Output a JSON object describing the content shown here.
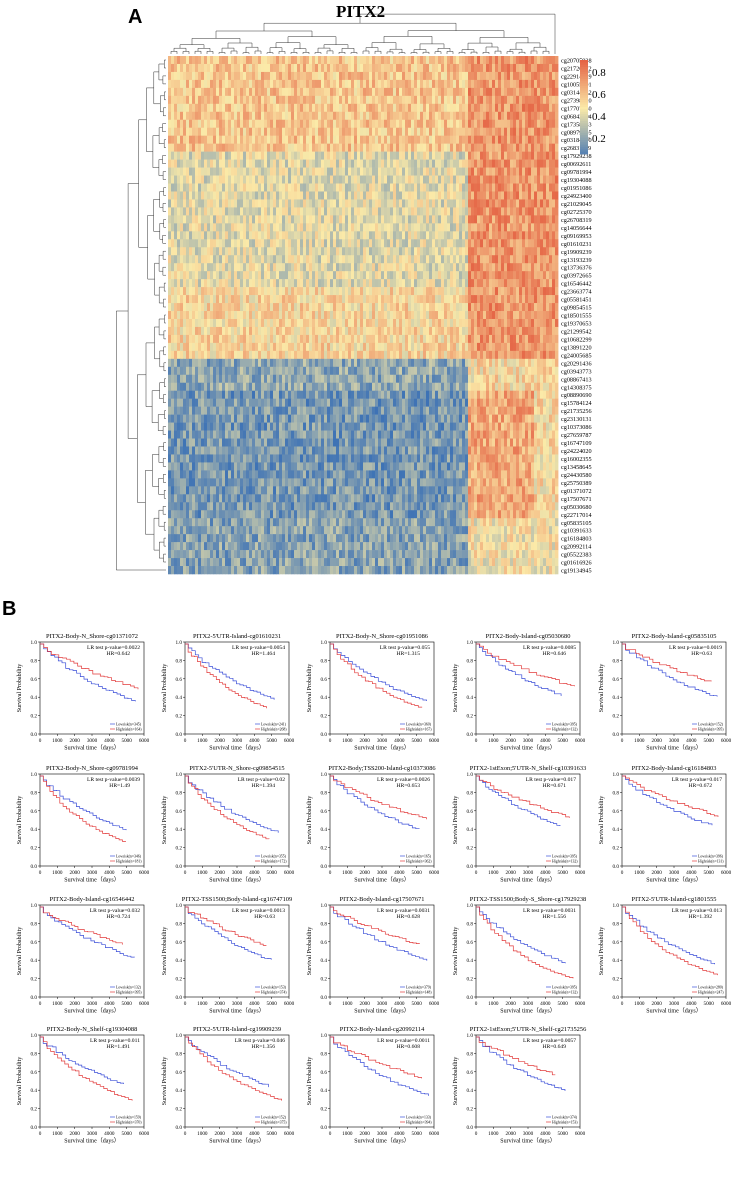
{
  "figure": {
    "panel_a_label": "A",
    "panel_b_label": "B"
  },
  "heatmap": {
    "title": "PITX2",
    "colorbar_ticks": [
      "0.8",
      "0.6",
      "0.4",
      "0.2"
    ],
    "colorbar_colors": [
      "#e2553a",
      "#fbeaa8",
      "#3d72b5"
    ],
    "row_labels": [
      "cg20705938",
      "cg21726372",
      "cg22914729",
      "cg10055501",
      "cg03144922",
      "cg27398720",
      "cg17707140",
      "cg06842954",
      "cg17358883",
      "cg08979895",
      "cg03184290",
      "cg26831119",
      "cg17929238",
      "cg00692611",
      "cg09781994",
      "cg19304088",
      "cg01951086",
      "cg24923400",
      "cg21029045",
      "cg02725370",
      "cg26708319",
      "cg14056644",
      "cg09169953",
      "cg01610231",
      "cg19909239",
      "cg13193239",
      "cg13736376",
      "cg03972665",
      "cg16546442",
      "cg23663774",
      "cg05581451",
      "cg09854515",
      "cg18501555",
      "cg19370653",
      "cg21299542",
      "cg10682299",
      "cg13891220",
      "cg24005685",
      "cg20291436",
      "cg03943773",
      "cg08867413",
      "cg14308375",
      "cg08890690",
      "cg15784124",
      "cg21735256",
      "cg23130131",
      "cg10373086",
      "cg27659787",
      "cg16747109",
      "cg24224020",
      "cg16002355",
      "cg13458645",
      "cg24430580",
      "cg25750389",
      "cg01371072",
      "cg17507671",
      "cg05030680",
      "cg22717014",
      "cg05835105",
      "cg10391633",
      "cg16184803",
      "cg20992114",
      "cg05522383",
      "cg01616926",
      "cg19134945"
    ]
  },
  "km_common": {
    "ylabel": "Survival Probability",
    "xlabel": "Survival time（days）",
    "yticks": [
      "0.0",
      "0.2",
      "0.4",
      "0.6",
      "0.8",
      "1.0"
    ],
    "xticks": [
      "0",
      "1000",
      "2000",
      "3000",
      "4000",
      "5000",
      "6000"
    ],
    "series_colors": {
      "low": "#3b4fd8",
      "high": "#e23a3a"
    }
  },
  "chart_data": [
    {
      "type": "line",
      "title": "PITX2-Body-N_Shore-cg01371072",
      "p": "LR test p-value=0.0022",
      "hr": "HR=0.642",
      "low_label": "Lowrisk(n=345)",
      "high_label": "Highrisk(n=164)"
    },
    {
      "type": "line",
      "title": "PITX2-5'UTR-Island-cg01610231",
      "p": "LR test p-value=0.0054",
      "hr": "HR=1.464",
      "low_label": "Lowrisk(n=241)",
      "high_label": "Highrisk(n=268)"
    },
    {
      "type": "line",
      "title": "PITX2-Body-N_Shore-cg01951086",
      "p": "LR test p-value=0.055",
      "hr": "HR=1.315",
      "low_label": "Lowrisk(n=360)",
      "high_label": "Highrisk(n=167)"
    },
    {
      "type": "line",
      "title": "PITX2-Body-Island-cg05030680",
      "p": "LR test p-value=0.0085",
      "hr": "HR=0.646",
      "low_label": "Lowrisk(n=395)",
      "high_label": "Highrisk(n=132)"
    },
    {
      "type": "line",
      "title": "PITX2-Body-Island-cg05835105",
      "p": "LR test p-value=0.0019",
      "hr": "HR=0.63",
      "low_label": "Lowrisk(n=152)",
      "high_label": "Highrisk(n=395)"
    },
    {
      "type": "line",
      "title": "PITX2-Body-N_Shore-cg09781994",
      "p": "LR test p-value=0.0039",
      "hr": "HR=1.49",
      "low_label": "Lowrisk(n=346)",
      "high_label": "Highrisk(n=181)"
    },
    {
      "type": "line",
      "title": "PITX2-5'UTR-N_Shore-cg09854515",
      "p": "LR test p-value=0.02",
      "hr": "HR=1.394",
      "low_label": "Lowrisk(n=355)",
      "high_label": "Highrisk(n=172)"
    },
    {
      "type": "line",
      "title": "PITX2-Body;TSS200-Island-cg10373086",
      "p": "LR test p-value=0.0026",
      "hr": "HR=0.653",
      "low_label": "Lowrisk(n=165)",
      "high_label": "Highrisk(n=362)"
    },
    {
      "type": "line",
      "title": "PITX2-1stExon;5'UTR-N_Shelf-cg10391633",
      "p": "LR test p-value=0.017",
      "hr": "HR=0.671",
      "low_label": "Lowrisk(n=395)",
      "high_label": "Highrisk(n=132)"
    },
    {
      "type": "line",
      "title": "PITX2-Body-Island-cg16184803",
      "p": "LR test p-value=0.017",
      "hr": "HR=0.672",
      "low_label": "Lowrisk(n=396)",
      "high_label": "Highrisk(n=131)"
    },
    {
      "type": "line",
      "title": "PITX2-Body-Island-cg16546442",
      "p": "LR test p-value=0.032",
      "hr": "HR=0.724",
      "low_label": "Lowrisk(n=132)",
      "high_label": "Highrisk(n=395)"
    },
    {
      "type": "line",
      "title": "PITX2-TSS1500;Body-Island-cg16747109",
      "p": "LR test p-value=0.0013",
      "hr": "HR=0.63",
      "low_label": "Lowrisk(n=153)",
      "high_label": "Highrisk(n=374)"
    },
    {
      "type": "line",
      "title": "PITX2-Body-Island-cg17507671",
      "p": "LR test p-value=0.0031",
      "hr": "HR=0.628",
      "low_label": "Lowrisk(n=379)",
      "high_label": "Highrisk(n=148)"
    },
    {
      "type": "line",
      "title": "PITX2-TSS1500;Body-S_Shore-cg17929238",
      "p": "LR test p-value=0.0031",
      "hr": "HR=1.556",
      "low_label": "Lowrisk(n=395)",
      "high_label": "Highrisk(n=132)"
    },
    {
      "type": "line",
      "title": "PITX2-5'UTR-Island-cg1801555",
      "p": "LR test p-value=0.013",
      "hr": "HR=1.392",
      "low_label": "Lowrisk(n=280)",
      "high_label": "Highrisk(n=247)"
    },
    {
      "type": "line",
      "title": "PITX2-Body-N_Shelf-cg19304088",
      "p": "LR test p-value=0.011",
      "hr": "HR=1.491",
      "low_label": "Lowrisk(n=159)",
      "high_label": "Highrisk(n=370)"
    },
    {
      "type": "line",
      "title": "PITX2-5'UTR-Island-cg19909239",
      "p": "LR test p-value=0.046",
      "hr": "HR=1.356",
      "low_label": "Lowrisk(n=152)",
      "high_label": "Highrisk(n=375)"
    },
    {
      "type": "line",
      "title": "PITX2-Body-Island-cg20992114",
      "p": "LR test p-value=0.0011",
      "hr": "HR=0.608",
      "low_label": "Lowrisk(n=133)",
      "high_label": "Highrisk(n=394)"
    },
    {
      "type": "line",
      "title": "PITX2-1stExon;5'UTR-N_Shelf-cg21735256",
      "p": "LR test p-value=0.0057",
      "hr": "HR=0.649",
      "low_label": "Lowrisk(n=374)",
      "high_label": "Highrisk(n=153)"
    }
  ]
}
